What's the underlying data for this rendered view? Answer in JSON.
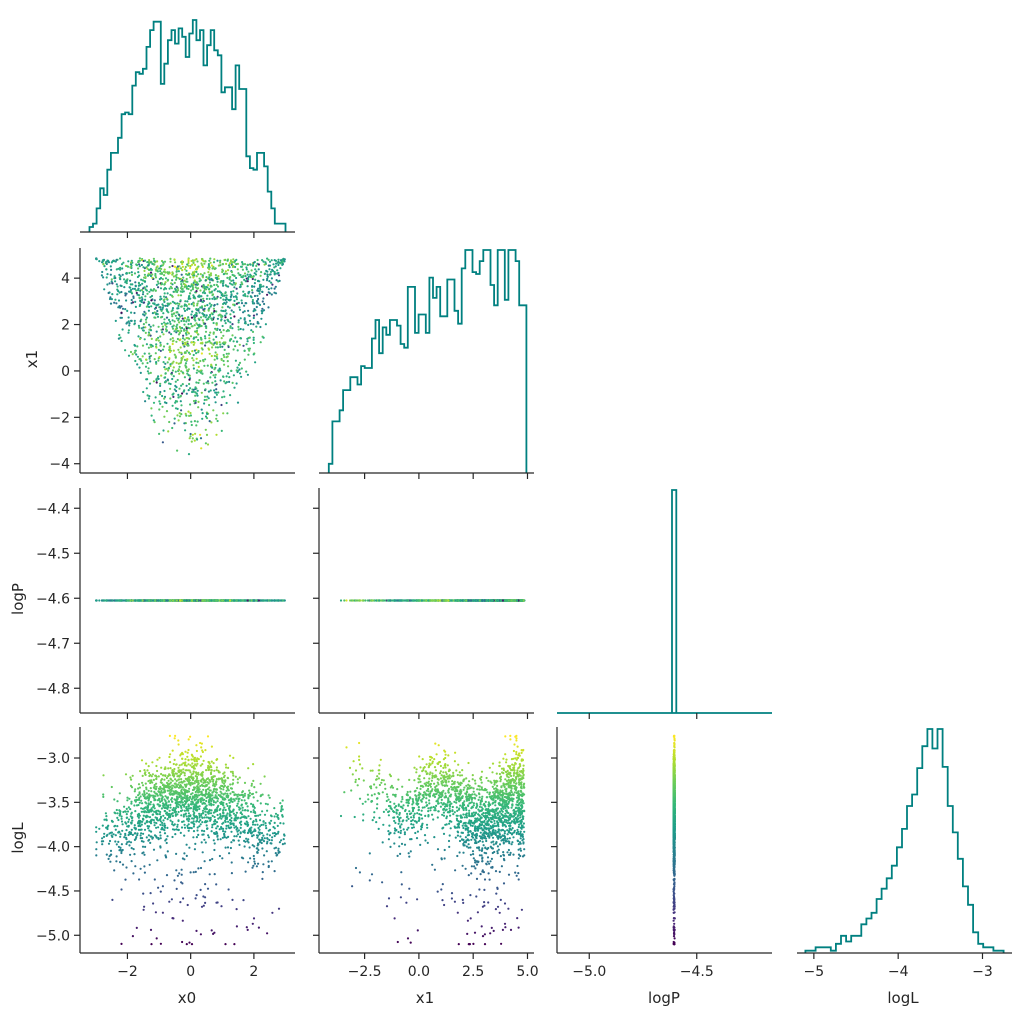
{
  "figure_type": "corner plot",
  "variables": [
    "x0",
    "x1",
    "logP",
    "logL"
  ],
  "colors": {
    "histogram": "#008080",
    "axis": "#262626",
    "colormap": "viridis"
  },
  "chart_data": [
    {
      "type": "histogram",
      "panel": "x0-marginal",
      "variable": "x0",
      "xlim": [
        -3.5,
        3.3
      ],
      "y_relative": true,
      "bin_edges_range": [
        -3.2,
        3.0
      ],
      "counts": [
        3,
        5,
        14,
        26,
        22,
        37,
        47,
        47,
        56,
        70,
        71,
        70,
        87,
        95,
        94,
        97,
        110,
        120,
        125,
        125,
        88,
        100,
        114,
        120,
        112,
        121,
        116,
        104,
        118,
        126,
        114,
        120,
        99,
        111,
        120,
        108,
        105,
        83,
        86,
        86,
        73,
        99,
        85,
        85,
        45,
        38,
        37,
        47,
        47,
        39,
        24,
        14,
        5,
        5,
        5
      ]
    },
    {
      "type": "scatter",
      "panel": "x1-vs-x0",
      "xlabel": "",
      "ylabel": "x1",
      "xlim": [
        -3.5,
        3.3
      ],
      "ylim": [
        -4.4,
        5.3
      ],
      "yticks": [
        -4,
        -2,
        0,
        2,
        4
      ],
      "color_by": "logL",
      "description": "points fill a parabola-shaped region: x1 spans from about x0^2 - 4.1 up to 4.85",
      "points_sample": [
        [
          -2.6,
          3.3,
          -4.6
        ],
        [
          -2.2,
          1.2,
          -4.7
        ],
        [
          -0.3,
          -4.0,
          -3.0
        ],
        [
          0.1,
          -3.5,
          -3.1
        ],
        [
          1.5,
          2.0,
          -3.4
        ],
        [
          2.8,
          4.6,
          -3.5
        ],
        [
          -1.5,
          3.9,
          -3.9
        ],
        [
          0.5,
          0.3,
          -3.3
        ],
        [
          -0.8,
          -1.8,
          -3.1
        ],
        [
          2.1,
          3.0,
          -3.7
        ]
      ]
    },
    {
      "type": "histogram",
      "panel": "x1-marginal",
      "variable": "x1",
      "xlim": [
        -4.6,
        5.3
      ],
      "y_relative": true,
      "bin_edges_range": [
        -4.15,
        4.95
      ],
      "counts": [
        5,
        28,
        28,
        34,
        45,
        45,
        52,
        52,
        48,
        58,
        57,
        57,
        73,
        83,
        65,
        79,
        75,
        83,
        83,
        80,
        70,
        68,
        101,
        101,
        76,
        86,
        86,
        76,
        106,
        95,
        101,
        85,
        85,
        105,
        105,
        88,
        81,
        111,
        121,
        121,
        109,
        108,
        115,
        121,
        121,
        102,
        91,
        121,
        121,
        94,
        121,
        121,
        115,
        91,
        91
      ]
    },
    {
      "type": "scatter",
      "panel": "logP-vs-x0",
      "xlabel": "",
      "ylabel": "logP",
      "xlim": [
        -3.5,
        3.3
      ],
      "ylim": [
        -4.855,
        -4.355
      ],
      "yticks": [
        -4.8,
        -4.7,
        -4.6,
        -4.5,
        -4.4
      ],
      "constant_y": -4.605,
      "x_range": [
        -3.1,
        3.0
      ]
    },
    {
      "type": "scatter",
      "panel": "logP-vs-x1",
      "xlim": [
        -4.6,
        5.3
      ],
      "ylim": [
        -4.855,
        -4.355
      ],
      "constant_y": -4.605,
      "x_range": [
        -4.15,
        4.9
      ]
    },
    {
      "type": "histogram",
      "panel": "logP-marginal",
      "variable": "logP",
      "xlim": [
        -5.15,
        -4.15
      ],
      "y_relative": true,
      "bin_edges": [
        -4.615,
        -4.595
      ],
      "counts": [
        1
      ]
    },
    {
      "type": "scatter",
      "panel": "logL-vs-x0",
      "xlabel": "x0",
      "ylabel": "logL",
      "xlim": [
        -3.5,
        3.3
      ],
      "ylim": [
        -5.2,
        -2.65
      ],
      "xticks": [
        -2,
        0,
        2
      ],
      "yticks": [
        -5.0,
        -4.5,
        -4.0,
        -3.5,
        -3.0
      ],
      "color_by": "logL",
      "description": "arch-shaped cloud peaking near x0=0 at logL about -3.3, with a sparse low tail down to -5.1 at the edges"
    },
    {
      "type": "scatter",
      "panel": "logL-vs-x1",
      "xlabel": "x1",
      "xlim": [
        -4.6,
        5.3
      ],
      "ylim": [
        -5.2,
        -2.65
      ],
      "xticks": [
        -2.5,
        0.0,
        2.5,
        5.0
      ],
      "color_by": "logL",
      "description": "band around logL -3.7 with oscillating upper edge peaking near -2.8 around x1=-1.8"
    },
    {
      "type": "scatter",
      "panel": "logL-vs-logP",
      "xlabel": "logP",
      "xlim": [
        -5.15,
        -4.15
      ],
      "ylim": [
        -5.2,
        -2.65
      ],
      "xticks": [
        -5.0,
        -4.5
      ],
      "constant_x": -4.605,
      "y_range": [
        -5.1,
        -2.75
      ],
      "color_by": "logL"
    },
    {
      "type": "histogram",
      "panel": "logL-marginal",
      "variable": "logL",
      "xlabel": "logL",
      "xlim": [
        -5.2,
        -2.65
      ],
      "xticks": [
        -5,
        -4,
        -3
      ],
      "y_relative": true,
      "bin_edges_range": [
        -5.1,
        -2.75
      ],
      "counts": [
        2,
        2,
        5,
        5,
        5,
        2,
        8,
        15,
        10,
        15,
        15,
        25,
        30,
        35,
        47,
        56,
        65,
        76,
        92,
        108,
        128,
        138,
        161,
        180,
        195,
        178,
        195,
        162,
        128,
        105,
        82,
        58,
        42,
        18,
        8,
        5,
        5,
        2,
        2
      ]
    }
  ],
  "tick_labels": {
    "x0": [
      "−2",
      "0",
      "2"
    ],
    "x1_bottom": [
      "−2.5",
      "0.0",
      "2.5",
      "5.0"
    ],
    "logP_bottom": [
      "−5.0",
      "−4.5"
    ],
    "logL_bottom": [
      "−5",
      "−4",
      "−3"
    ],
    "x1_left": [
      "−4",
      "−2",
      "0",
      "2",
      "4"
    ],
    "logP_left": [
      "−4.8",
      "−4.7",
      "−4.6",
      "−4.5",
      "−4.4"
    ],
    "logL_left": [
      "−5.0",
      "−4.5",
      "−4.0",
      "−3.5",
      "−3.0"
    ]
  },
  "axis_labels": {
    "x0": "x0",
    "x1": "x1",
    "logP": "logP",
    "logL": "logL",
    "row_x1": "x1",
    "row_logP": "logP",
    "row_logL": "logL"
  }
}
